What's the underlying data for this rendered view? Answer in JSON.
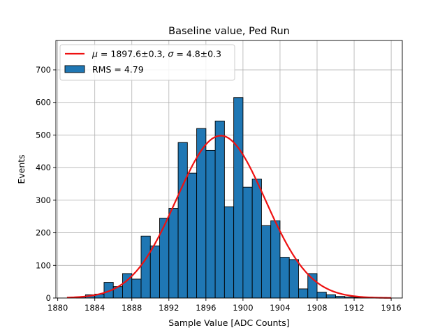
{
  "chart_data": {
    "type": "bar",
    "title": "Baseline value, Ped Run",
    "xlabel": "Sample Value [ADC Counts]",
    "ylabel": "Events",
    "xlim": [
      1879.8,
      1917.2
    ],
    "ylim": [
      0,
      790
    ],
    "grid": true,
    "legend_position": "top-left",
    "x_ticks": [
      1880,
      1884,
      1888,
      1892,
      1896,
      1900,
      1904,
      1908,
      1912,
      1916
    ],
    "y_ticks": [
      0,
      100,
      200,
      300,
      400,
      500,
      600,
      700
    ],
    "histogram": {
      "name": "RMS = 4.79",
      "color": "#1f77b4",
      "edge_color": "#000000",
      "bin_start": 1882,
      "bin_width": 1,
      "values": [
        3,
        10,
        12,
        48,
        35,
        75,
        58,
        190,
        160,
        245,
        275,
        477,
        383,
        520,
        453,
        543,
        280,
        615,
        340,
        365,
        222,
        237,
        125,
        118,
        28,
        75,
        18,
        10,
        5,
        3,
        2,
        1
      ]
    },
    "fit": {
      "name_math_mu": "μ",
      "name_eq1": " = 1897.6±0.3, ",
      "name_math_sigma": "σ",
      "name_eq2": " = 4.8±0.3",
      "type": "gaussian",
      "mu": 1897.6,
      "sigma": 4.8,
      "amplitude": 498,
      "x_range": [
        1881,
        1916
      ],
      "color": "#ee1111"
    }
  }
}
